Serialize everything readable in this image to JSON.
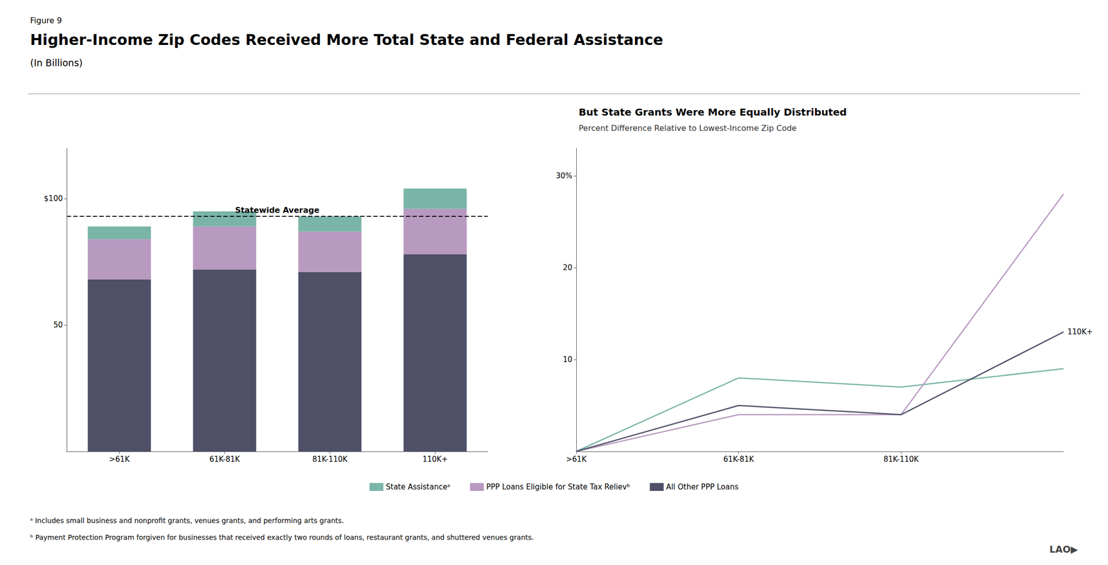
{
  "figure_label": "Figure 9",
  "title": "Higher-Income Zip Codes Received More Total State and Federal Assistance",
  "subtitle": "(In Billions)",
  "footnotes": [
    "ᵃ Includes small business and nonprofit grants, venues grants, and performing arts grants.",
    "ᵇ Payment Protection Program forgiven for businesses that received exactly two rounds of loans, restaurant grants, and shuttered venues grants."
  ],
  "logo": "LAO▶",
  "chart_data": [
    {
      "type": "bar",
      "stacked": true,
      "categories": [
        ">61K",
        "61K-81K",
        "81K-110K",
        "110K+"
      ],
      "series": [
        {
          "name": "All Other PPP Loans",
          "color": "#4f5068",
          "values": [
            68,
            72,
            71,
            78
          ]
        },
        {
          "name": "PPP Loans Eligible for State Tax Relievᵇ",
          "color": "#b899c0",
          "values": [
            16,
            17,
            16,
            18
          ]
        },
        {
          "name": "State Assistanceᵃ",
          "color": "#7ab5a8",
          "values": [
            5,
            6,
            6,
            8
          ]
        }
      ],
      "annotations": [
        {
          "text": "Statewide Average",
          "y": 93
        }
      ],
      "ylim": [
        0,
        120
      ],
      "yticks": [
        50,
        {
          "value": 100,
          "label": "$100"
        }
      ],
      "grid": false,
      "legend": "bottom"
    },
    {
      "type": "line",
      "title": "But State Grants Were More Equally Distributed",
      "subtitle": "Percent Difference Relative to Lowest-Income Zip Code",
      "categories": [
        ">61K",
        "61K-81K",
        "81K-110K",
        null
      ],
      "series": [
        {
          "name": "State Assistanceᵃ",
          "color": "#7ab5a8",
          "values": [
            0,
            8,
            7,
            9
          ]
        },
        {
          "name": "PPP Loans Eligible for State Tax Relievᵇ",
          "color": "#b899c0",
          "values": [
            0,
            4,
            4,
            28
          ]
        },
        {
          "name": "All Other PPP Loans",
          "color": "#4f5068",
          "values": [
            0,
            5,
            4,
            13
          ]
        }
      ],
      "annotations": [
        {
          "text": "110K+",
          "series": "All Other PPP Loans"
        }
      ],
      "ylim": [
        0,
        33
      ],
      "yticks": [
        10,
        20,
        {
          "value": 30,
          "label": "30%"
        }
      ],
      "grid": false,
      "legend": "bottom"
    }
  ]
}
